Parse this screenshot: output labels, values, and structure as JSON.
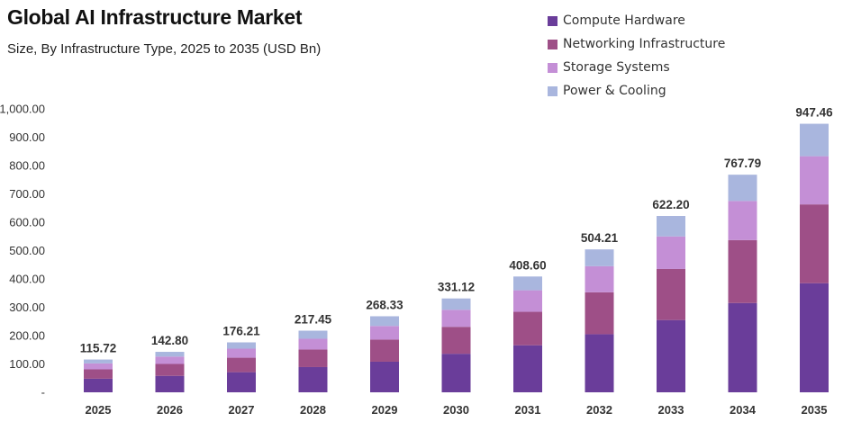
{
  "title": "Global AI Infrastructure Market",
  "subtitle": "Size, By Infrastructure Type, 2025 to 2035 (USD Bn)",
  "chart_data": {
    "type": "bar",
    "stacked": true,
    "title": "Global AI Infrastructure Market",
    "subtitle": "Size, By Infrastructure Type, 2025 to 2035 (USD Bn)",
    "categories": [
      "2025",
      "2026",
      "2027",
      "2028",
      "2029",
      "2030",
      "2031",
      "2032",
      "2033",
      "2034",
      "2035"
    ],
    "series": [
      {
        "name": "Compute Hardware",
        "color": "#6a3d9a",
        "values": [
          48,
          58,
          71,
          89,
          108,
          136,
          166,
          205,
          255,
          315,
          385
        ]
      },
      {
        "name": "Networking Infrastructure",
        "color": "#9e4f87",
        "values": [
          33,
          42,
          51,
          62,
          78,
          95,
          118,
          148,
          180,
          222,
          278
        ]
      },
      {
        "name": "Storage Systems",
        "color": "#c48fd6",
        "values": [
          21,
          26,
          32,
          38,
          48,
          60,
          76,
          92,
          115,
          138,
          170
        ]
      },
      {
        "name": "Power & Cooling",
        "color": "#a9b6de",
        "values": [
          13.72,
          16.8,
          22.21,
          28.45,
          34.33,
          40.12,
          48.6,
          59.21,
          72.2,
          92.79,
          114.46
        ]
      }
    ],
    "totals": [
      "115.72",
      "142.80",
      "176.21",
      "217.45",
      "268.33",
      "331.12",
      "408.60",
      "504.21",
      "622.20",
      "767.79",
      "947.46"
    ],
    "yticks": [
      "-",
      "100.00",
      "200.00",
      "300.00",
      "400.00",
      "500.00",
      "600.00",
      "700.00",
      "800.00",
      "900.00",
      "1,000.00"
    ],
    "ylim": [
      0,
      1000
    ],
    "xlabel": "",
    "ylabel": "",
    "legend_position": "top-right",
    "grid": false
  }
}
